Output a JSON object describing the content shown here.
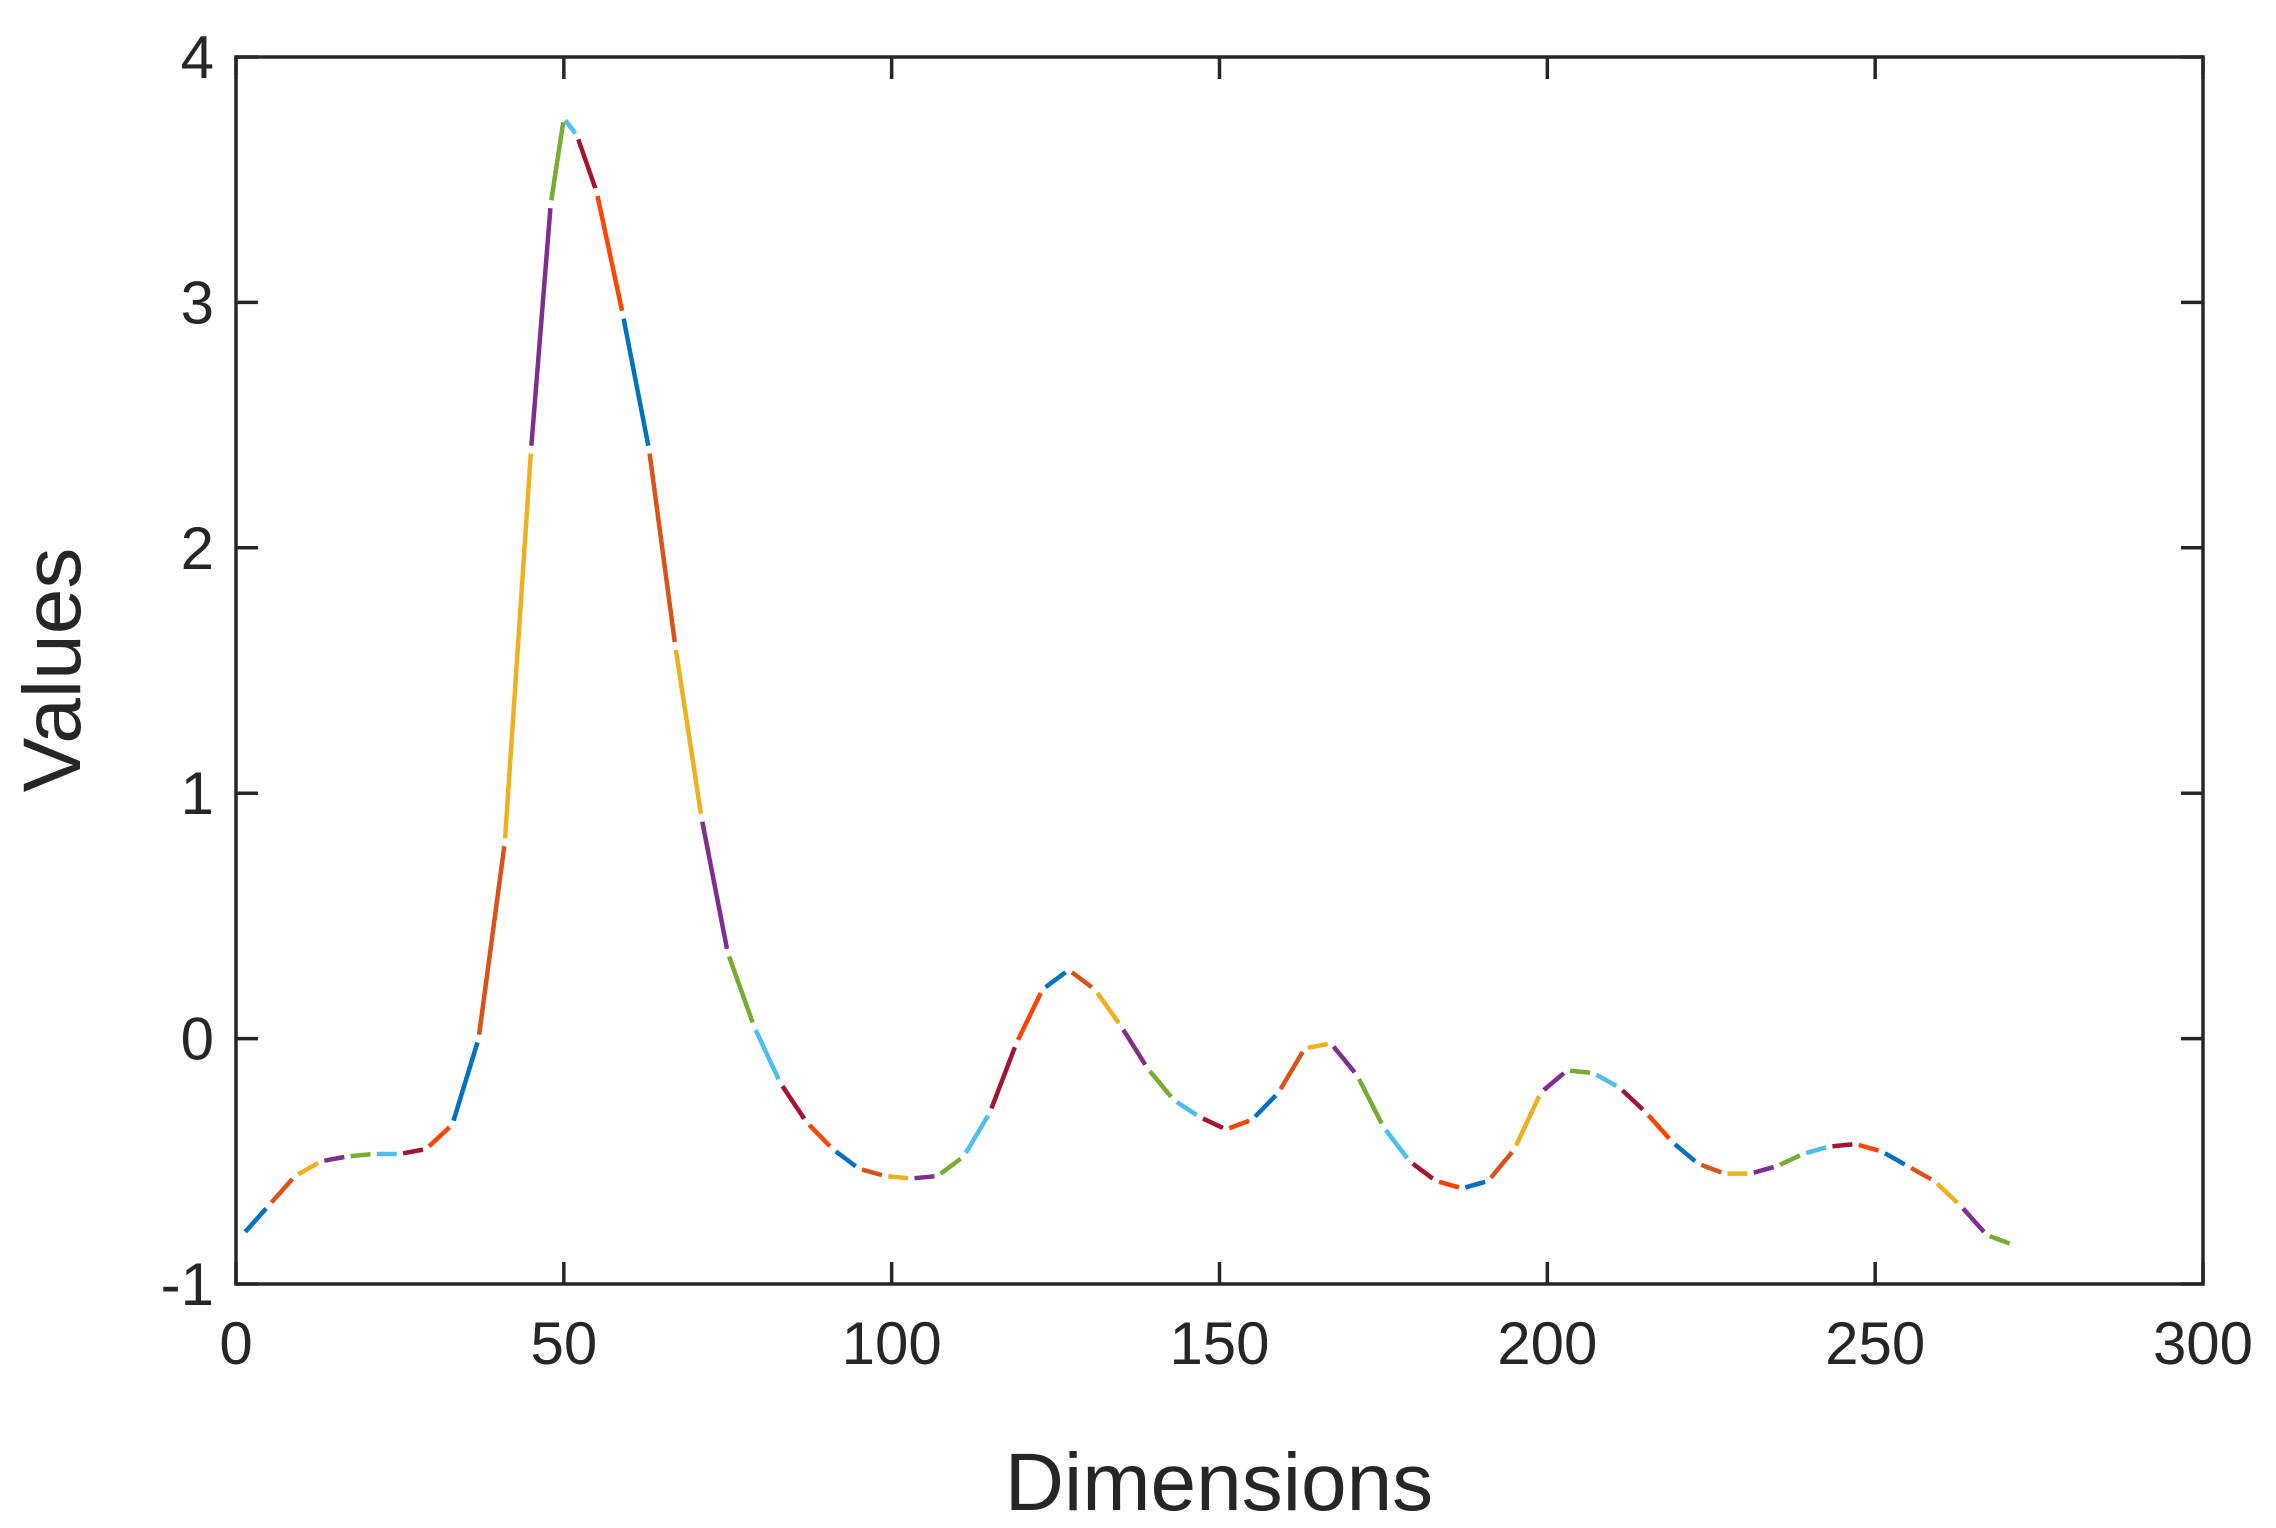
{
  "chart_data": {
    "type": "line",
    "title": "",
    "xlabel": "Dimensions",
    "ylabel": "Values",
    "xlim": [
      0,
      300
    ],
    "ylim": [
      -1,
      4
    ],
    "xticks": [
      0,
      50,
      100,
      150,
      200,
      250,
      300
    ],
    "yticks": [
      -1,
      0,
      1,
      2,
      3,
      4
    ],
    "xtick_labels": [
      "0",
      "50",
      "100",
      "150",
      "200",
      "250",
      "300"
    ],
    "ytick_labels": [
      "-1",
      "0",
      "1",
      "2",
      "3",
      "4"
    ],
    "grid": false,
    "legend": "none",
    "segment_colors": [
      "#0072BD",
      "#D95319",
      "#EDB120",
      "#7E2F8E",
      "#77AC30",
      "#4DBEEE",
      "#A2142F",
      "#FF4500"
    ],
    "series": [
      {
        "x": [
          1,
          5,
          9,
          13,
          17,
          21,
          25,
          29,
          33,
          37,
          41,
          45,
          48,
          50,
          52,
          55,
          59,
          63,
          67,
          71,
          75,
          79,
          83,
          87,
          91,
          95,
          99,
          103,
          107,
          111,
          115,
          119,
          123,
          127,
          131,
          135,
          139,
          143,
          147,
          151,
          155,
          159,
          163,
          167,
          171,
          175,
          179,
          183,
          187,
          191,
          195,
          199,
          203,
          207,
          211,
          215,
          219,
          223,
          227,
          231,
          235,
          239,
          243,
          247,
          251,
          255,
          259,
          263,
          267,
          271
        ],
        "y": [
          -0.8,
          -0.68,
          -0.56,
          -0.5,
          -0.48,
          -0.47,
          -0.47,
          -0.45,
          -0.35,
          0.0,
          0.8,
          2.4,
          3.4,
          3.75,
          3.68,
          3.45,
          2.95,
          2.4,
          1.6,
          0.9,
          0.35,
          0.05,
          -0.18,
          -0.34,
          -0.45,
          -0.53,
          -0.56,
          -0.57,
          -0.56,
          -0.48,
          -0.3,
          -0.02,
          0.2,
          0.28,
          0.2,
          0.05,
          -0.12,
          -0.25,
          -0.32,
          -0.37,
          -0.33,
          -0.22,
          -0.04,
          -0.02,
          -0.15,
          -0.36,
          -0.5,
          -0.58,
          -0.61,
          -0.58,
          -0.45,
          -0.22,
          -0.13,
          -0.14,
          -0.2,
          -0.3,
          -0.42,
          -0.51,
          -0.55,
          -0.55,
          -0.52,
          -0.47,
          -0.44,
          -0.43,
          -0.46,
          -0.52,
          -0.58,
          -0.68,
          -0.8,
          -0.84
        ]
      }
    ]
  }
}
